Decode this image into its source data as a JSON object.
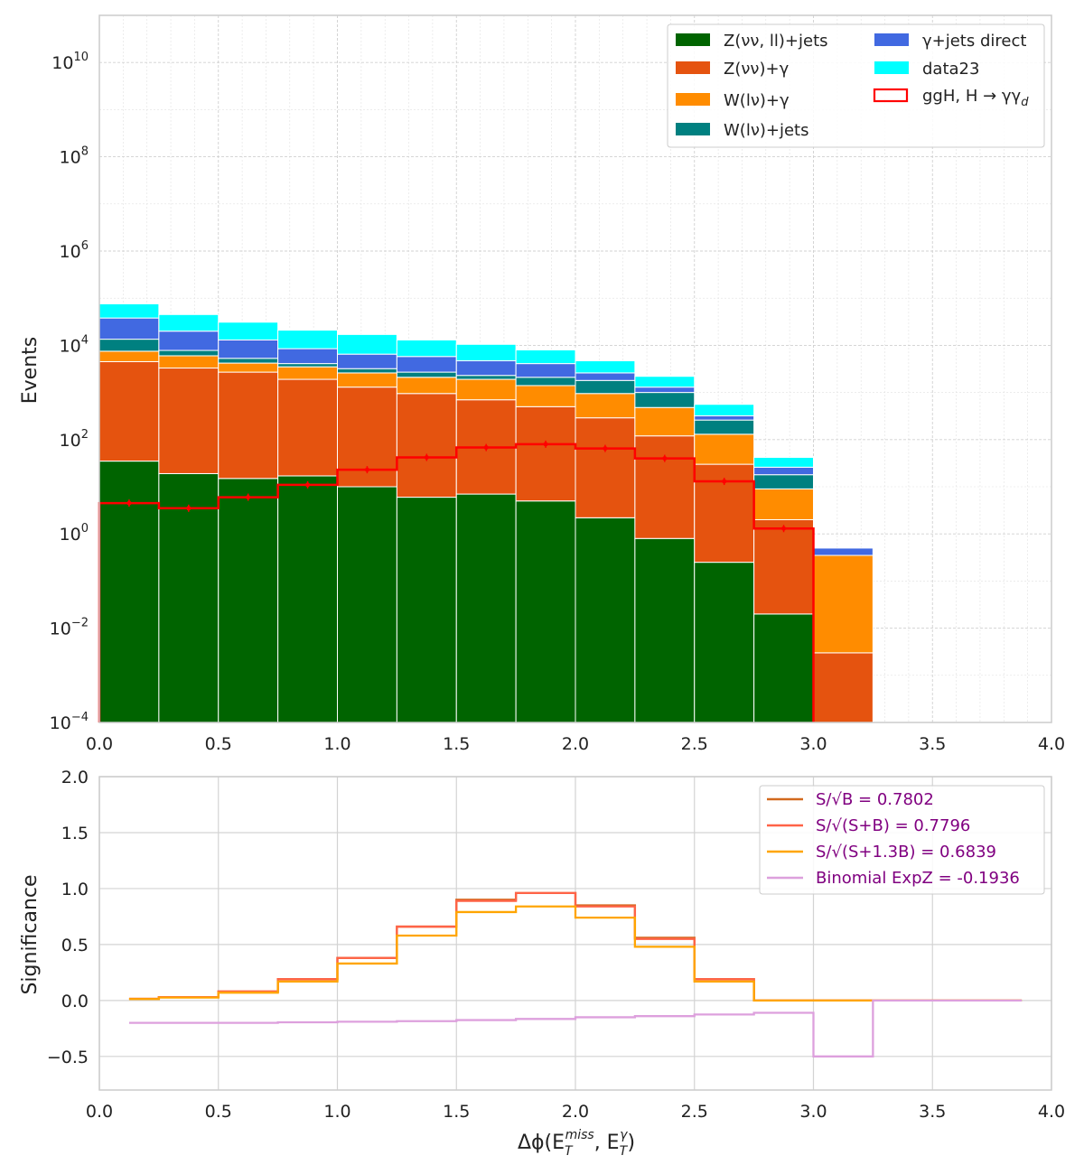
{
  "chart_data": [
    {
      "type": "bar",
      "subtype": "stacked-histogram-log",
      "ylabel": "Events",
      "xlim": [
        0.0,
        4.0
      ],
      "ylog": true,
      "ylim_exp": [
        -4,
        11
      ],
      "x_ticks": [
        "0.0",
        "0.5",
        "1.0",
        "1.5",
        "2.0",
        "2.5",
        "3.0",
        "3.5",
        "4.0"
      ],
      "y_ticks": [
        {
          "exp": -4,
          "base": "10",
          "sup": "−4"
        },
        {
          "exp": -2,
          "base": "10",
          "sup": "−2"
        },
        {
          "exp": 0,
          "base": "10",
          "sup": "0"
        },
        {
          "exp": 2,
          "base": "10",
          "sup": "2"
        },
        {
          "exp": 4,
          "base": "10",
          "sup": "4"
        },
        {
          "exp": 6,
          "base": "10",
          "sup": "6"
        },
        {
          "exp": 8,
          "base": "10",
          "sup": "8"
        },
        {
          "exp": 10,
          "base": "10",
          "sup": "10"
        }
      ],
      "bin_edges": [
        0.0,
        0.25,
        0.5,
        0.75,
        1.0,
        1.25,
        1.5,
        1.75,
        2.0,
        2.25,
        2.5,
        2.75,
        3.0,
        3.25
      ],
      "grid": true,
      "legend_position": "top-right",
      "stack_order_bottom_to_top": [
        "Z(νν, ll)+jets",
        "Z(νν)+γ",
        "W(lν)+γ",
        "W(lν)+jets",
        "γ+jets direct",
        "data23"
      ],
      "series": [
        {
          "name": "Z(νν, ll)+jets",
          "color": "#006400",
          "cumulative_top": [
            35,
            19,
            15,
            17,
            10,
            6,
            7,
            5,
            2.2,
            0.8,
            0.25,
            0.02,
            null
          ]
        },
        {
          "name": "Z(νν)+γ",
          "color": "#e5530f",
          "cumulative_top": [
            4500,
            3300,
            2700,
            1900,
            1300,
            950,
            700,
            500,
            290,
            120,
            30,
            2,
            0.003
          ]
        },
        {
          "name": "W(lν)+γ",
          "color": "#ff8c00",
          "cumulative_top": [
            7500,
            6000,
            4200,
            3500,
            2600,
            2100,
            1900,
            1400,
            950,
            480,
            130,
            9,
            0.35
          ]
        },
        {
          "name": "W(lν)+jets",
          "color": "#008080",
          "cumulative_top": [
            13500,
            7800,
            5300,
            4100,
            3200,
            2700,
            2300,
            2100,
            1800,
            1000,
            260,
            18,
            0.35
          ]
        },
        {
          "name": "γ+jets direct",
          "color": "#4169e1",
          "cumulative_top": [
            38000,
            20000,
            13000,
            8500,
            6500,
            5800,
            4700,
            4100,
            2600,
            1300,
            320,
            26,
            0.5
          ]
        },
        {
          "name": "data23",
          "color": "#00ffff",
          "cumulative_top": [
            76000,
            45000,
            31000,
            21000,
            17000,
            13000,
            10500,
            8000,
            4700,
            2200,
            560,
            42,
            null
          ]
        }
      ],
      "signal": {
        "name": "ggH, H→γγ",
        "name_subscript": "d",
        "color": "#ff0000",
        "values": [
          4.5,
          3.5,
          6,
          11,
          23,
          42,
          68,
          80,
          65,
          40,
          13,
          1.3,
          null
        ]
      },
      "legend": [
        {
          "label": "Z(νν, ll)+jets",
          "color": "#006400",
          "style": "fill"
        },
        {
          "label": "Z(νν)+γ",
          "color": "#e5530f",
          "style": "fill"
        },
        {
          "label": "W(lν)+γ",
          "color": "#ff8c00",
          "style": "fill"
        },
        {
          "label": "W(lν)+jets",
          "color": "#008080",
          "style": "fill"
        },
        {
          "label": "γ+jets direct",
          "color": "#4169e1",
          "style": "fill"
        },
        {
          "label": "data23",
          "color": "#00ffff",
          "style": "fill"
        },
        {
          "label": "ggH, H → γγ",
          "label_sub": "d",
          "color": "#ff0000",
          "style": "outline"
        }
      ]
    },
    {
      "type": "line",
      "subtype": "step",
      "ylabel": "Significance",
      "xlabel_main": "Δϕ(E",
      "xlabel_parts": {
        "e1_sub": "T",
        "e1_sup": "miss",
        "mid": ", E",
        "e2_sub": "T",
        "e2_sup": "γ",
        "end": ")"
      },
      "xlim": [
        0.0,
        4.0
      ],
      "ylim": [
        -0.8,
        2.0
      ],
      "x_ticks": [
        "0.0",
        "0.5",
        "1.0",
        "1.5",
        "2.0",
        "2.5",
        "3.0",
        "3.5",
        "4.0"
      ],
      "y_ticks": [
        "−0.5",
        "0.0",
        "0.5",
        "1.0",
        "1.5",
        "2.0"
      ],
      "y_tick_values": [
        -0.5,
        0.0,
        0.5,
        1.0,
        1.5,
        2.0
      ],
      "x": [
        0.125,
        0.375,
        0.625,
        0.875,
        1.125,
        1.375,
        1.625,
        1.875,
        2.125,
        2.375,
        2.625,
        2.875,
        3.125,
        3.375,
        3.625,
        3.875
      ],
      "grid": true,
      "legend_position": "top-right",
      "series": [
        {
          "name": "S/√B = 0.7802",
          "color": "#d2691e",
          "values": [
            0.015,
            0.03,
            0.08,
            0.19,
            0.38,
            0.66,
            0.9,
            0.96,
            0.85,
            0.56,
            0.19,
            0.0,
            0.0,
            0.0,
            0.0,
            0.0
          ]
        },
        {
          "name": "S/√(S+B) = 0.7796",
          "color": "#ff6347",
          "values": [
            0.015,
            0.03,
            0.08,
            0.19,
            0.38,
            0.66,
            0.89,
            0.96,
            0.84,
            0.55,
            0.19,
            0.0,
            0.0,
            0.0,
            0.0,
            0.0
          ]
        },
        {
          "name": "S/√(S+1.3B) = 0.6839",
          "color": "#ffa500",
          "values": [
            0.013,
            0.026,
            0.07,
            0.17,
            0.33,
            0.58,
            0.79,
            0.84,
            0.74,
            0.48,
            0.17,
            0.0,
            0.0,
            0.0,
            0.0,
            0.0
          ]
        },
        {
          "name": "Binomial ExpZ = -0.1936",
          "color": "#dda0dd",
          "values": [
            -0.2,
            -0.2,
            -0.2,
            -0.195,
            -0.19,
            -0.185,
            -0.175,
            -0.165,
            -0.15,
            -0.14,
            -0.125,
            -0.11,
            -0.5,
            0.0,
            0.0,
            0.0
          ]
        }
      ]
    }
  ]
}
